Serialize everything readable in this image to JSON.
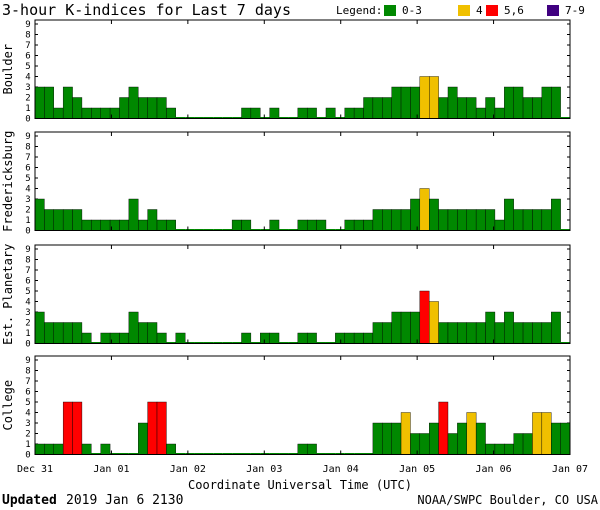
{
  "chart_data": {
    "type": "bar",
    "title": "3-hour K-indices for Last 7 days",
    "xlabel": "Coordinate Universal Time (UTC)",
    "ylim": [
      0,
      9
    ],
    "yticks": [
      "0",
      "1",
      "2",
      "3",
      "4",
      "5",
      "6",
      "7",
      "8",
      "9"
    ],
    "grid": false,
    "legend_placement": "top-right",
    "legend": {
      "label": "Legend:",
      "entries": [
        {
          "label": "0-3",
          "color": "#008800"
        },
        {
          "label": "4",
          "color": "#f0c000"
        },
        {
          "label": "5,6",
          "color": "#ff0000"
        },
        {
          "label": "7-9",
          "color": "#400080"
        }
      ]
    },
    "x_ticks": [
      "Dec 31",
      "Jan 01",
      "Jan 02",
      "Jan 03",
      "Jan 04",
      "Jan 05",
      "Jan 06",
      "Jan 07"
    ],
    "panels": [
      {
        "name": "Boulder",
        "values": [
          3,
          3,
          1,
          3,
          2,
          1,
          1,
          1,
          1,
          2,
          3,
          2,
          2,
          2,
          1,
          0,
          0,
          0,
          0,
          0,
          0,
          0,
          1,
          1,
          0,
          1,
          0,
          0,
          1,
          1,
          0,
          1,
          0,
          1,
          1,
          2,
          2,
          2,
          3,
          3,
          3,
          4,
          4,
          2,
          3,
          2,
          2,
          1,
          2,
          1,
          3,
          3,
          2,
          2,
          3,
          3,
          0
        ]
      },
      {
        "name": "Fredericksburg",
        "values": [
          3,
          2,
          2,
          2,
          2,
          1,
          1,
          1,
          1,
          1,
          3,
          1,
          2,
          1,
          1,
          0,
          0,
          0,
          0,
          0,
          0,
          1,
          1,
          0,
          0,
          1,
          0,
          0,
          1,
          1,
          1,
          0,
          0,
          1,
          1,
          1,
          2,
          2,
          2,
          2,
          3,
          4,
          3,
          2,
          2,
          2,
          2,
          2,
          2,
          1,
          3,
          2,
          2,
          2,
          2,
          3,
          0
        ]
      },
      {
        "name": "Est. Planetary",
        "values": [
          3,
          2,
          2,
          2,
          2,
          1,
          0,
          1,
          1,
          1,
          3,
          2,
          2,
          1,
          0,
          1,
          0,
          0,
          0,
          0,
          0,
          0,
          1,
          0,
          1,
          1,
          0,
          0,
          1,
          1,
          0,
          0,
          1,
          1,
          1,
          1,
          2,
          2,
          3,
          3,
          3,
          5,
          4,
          2,
          2,
          2,
          2,
          2,
          3,
          2,
          3,
          2,
          2,
          2,
          2,
          3,
          0
        ]
      },
      {
        "name": "College",
        "values": [
          1,
          1,
          1,
          5,
          5,
          1,
          0,
          1,
          0,
          0,
          0,
          3,
          5,
          5,
          1,
          0,
          0,
          0,
          0,
          0,
          0,
          0,
          0,
          0,
          0,
          0,
          0,
          0,
          1,
          1,
          0,
          0,
          0,
          0,
          0,
          0,
          3,
          3,
          3,
          4,
          2,
          2,
          3,
          5,
          2,
          3,
          4,
          3,
          1,
          1,
          1,
          2,
          2,
          4,
          4,
          3,
          3
        ]
      }
    ]
  },
  "footer": {
    "updated_label": "Updated",
    "updated_time": "2019 Jan  6 2130",
    "credit": "NOAA/SWPC Boulder, CO USA"
  }
}
